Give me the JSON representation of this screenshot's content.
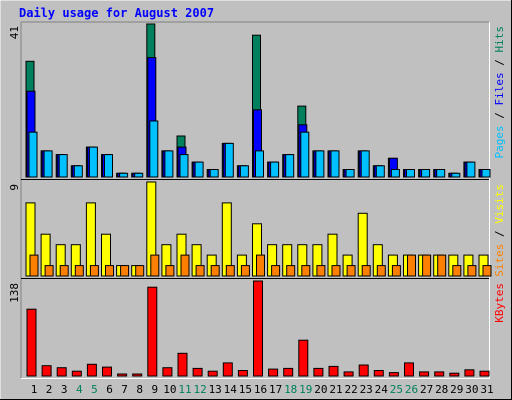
{
  "chart_data": {
    "title": "Daily usage for August 2007",
    "type": "bar",
    "categories": [
      "1",
      "2",
      "3",
      "4",
      "5",
      "6",
      "7",
      "8",
      "9",
      "10",
      "11",
      "12",
      "13",
      "14",
      "15",
      "16",
      "17",
      "18",
      "19",
      "20",
      "21",
      "22",
      "23",
      "24",
      "25",
      "26",
      "27",
      "28",
      "29",
      "30",
      "31"
    ],
    "weekend_days": [
      "4",
      "5",
      "11",
      "12",
      "18",
      "19",
      "25",
      "26"
    ],
    "colors": {
      "background": "#c0c0c0",
      "title": "#0000ff",
      "hits": "#00805c",
      "files": "#0000ff",
      "pages": "#00c0ff",
      "visits": "#ffff00",
      "sites": "#ff8000",
      "kbytes": "#ff0000",
      "weekend_label": "#00805c",
      "weekday_label": "#000000",
      "divider": "#000000"
    },
    "panels": [
      {
        "name": "hits-files-pages",
        "scale_max": 41,
        "scale_label": "41",
        "axis_label": [
          {
            "text": "Pages",
            "color": "#00c0ff"
          },
          {
            "text": " / ",
            "color": "#000000"
          },
          {
            "text": "Files",
            "color": "#0000ff"
          },
          {
            "text": " / ",
            "color": "#000000"
          },
          {
            "text": "Hits",
            "color": "#00805c"
          }
        ],
        "series": [
          {
            "name": "Hits",
            "values": [
              31,
              7,
              6,
              3,
              8,
              6,
              1,
              1,
              41,
              7,
              11,
              4,
              2,
              9,
              3,
              38,
              4,
              6,
              19,
              7,
              7,
              2,
              7,
              3,
              5,
              2,
              2,
              2,
              1,
              4,
              2
            ]
          },
          {
            "name": "Files",
            "values": [
              23,
              7,
              6,
              3,
              8,
              6,
              1,
              1,
              32,
              7,
              8,
              4,
              2,
              9,
              3,
              18,
              4,
              6,
              14,
              7,
              7,
              2,
              7,
              3,
              5,
              2,
              2,
              2,
              1,
              4,
              2
            ]
          },
          {
            "name": "Pages",
            "values": [
              12,
              7,
              6,
              3,
              8,
              6,
              1,
              1,
              15,
              7,
              6,
              4,
              2,
              9,
              3,
              7,
              4,
              6,
              12,
              7,
              7,
              2,
              7,
              3,
              2,
              2,
              2,
              2,
              1,
              4,
              2
            ]
          }
        ]
      },
      {
        "name": "visits-sites",
        "scale_max": 9,
        "scale_label": "9",
        "axis_label": [
          {
            "text": "Sites",
            "color": "#ff8000"
          },
          {
            "text": " / ",
            "color": "#000000"
          },
          {
            "text": "Visits",
            "color": "#ffff00"
          }
        ],
        "series": [
          {
            "name": "Visits",
            "values": [
              7,
              4,
              3,
              3,
              7,
              4,
              1,
              1,
              9,
              3,
              4,
              3,
              2,
              7,
              2,
              5,
              3,
              3,
              3,
              3,
              4,
              2,
              6,
              3,
              2,
              2,
              2,
              2,
              2,
              2,
              2
            ]
          },
          {
            "name": "Sites",
            "values": [
              2,
              1,
              1,
              1,
              1,
              1,
              1,
              1,
              2,
              1,
              2,
              1,
              1,
              1,
              1,
              2,
              1,
              1,
              1,
              1,
              1,
              1,
              1,
              1,
              1,
              2,
              2,
              2,
              1,
              1,
              1
            ]
          }
        ]
      },
      {
        "name": "kbytes",
        "scale_max": 138,
        "scale_label": "138",
        "axis_label": [
          {
            "text": "KBytes",
            "color": "#ff0000"
          }
        ],
        "series": [
          {
            "name": "KBytes",
            "values": [
              97,
              15,
              12,
              7,
              17,
              13,
              2,
              2,
              129,
              12,
              33,
              11,
              7,
              19,
              8,
              138,
              10,
              11,
              52,
              11,
              14,
              6,
              16,
              8,
              5,
              19,
              6,
              6,
              4,
              9,
              7
            ]
          }
        ]
      }
    ]
  }
}
